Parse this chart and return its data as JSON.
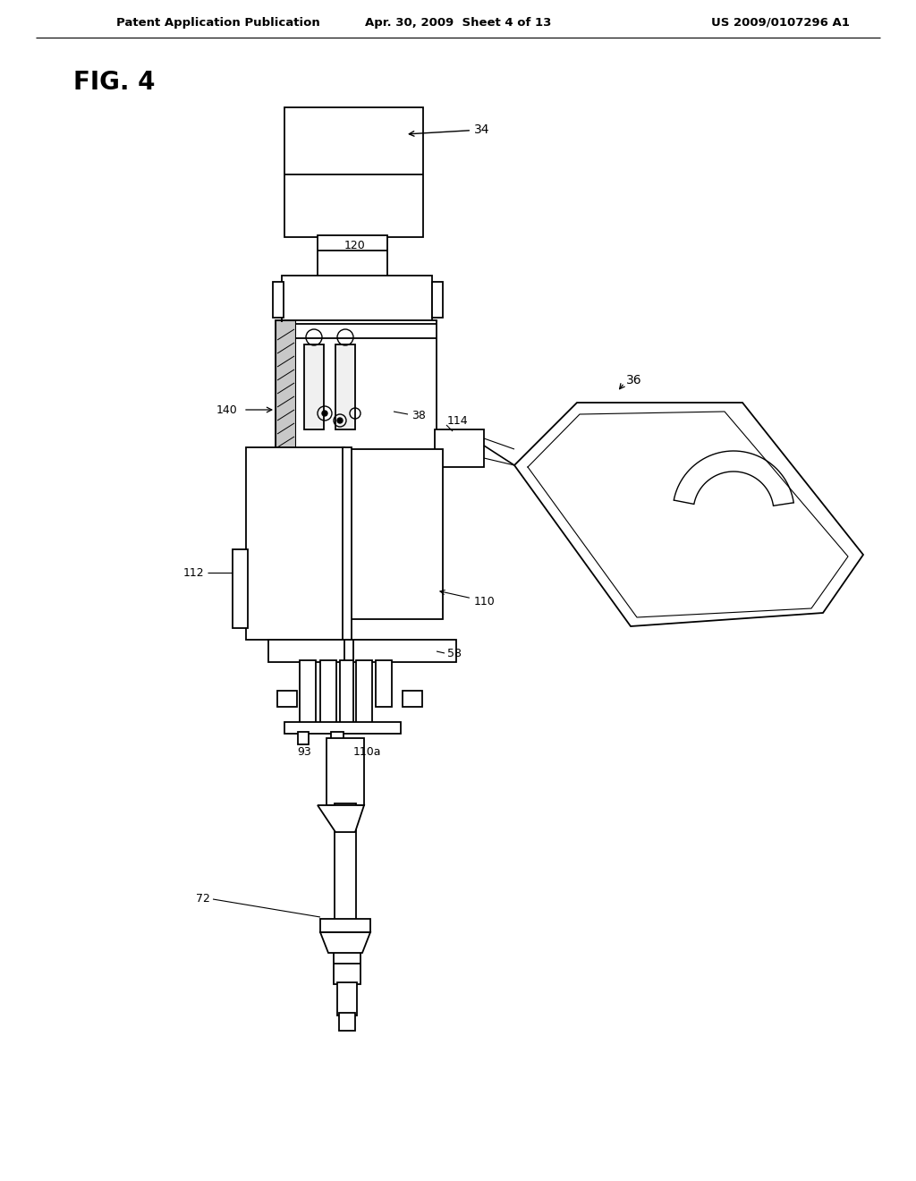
{
  "bg_color": "#ffffff",
  "line_color": "#000000",
  "header_left": "Patent Application Publication",
  "header_center": "Apr. 30, 2009  Sheet 4 of 13",
  "header_right": "US 2009/0107296 A1",
  "fig_label": "FIG. 4"
}
